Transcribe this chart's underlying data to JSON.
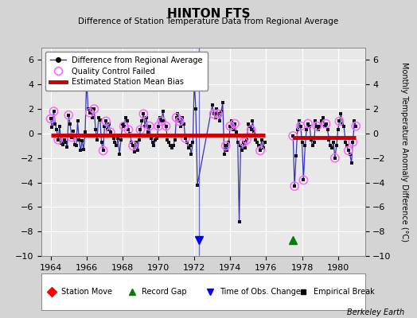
{
  "title": "HINTON FTS",
  "subtitle": "Difference of Station Temperature Data from Regional Average",
  "ylabel": "Monthly Temperature Anomaly Difference (°C)",
  "credit": "Berkeley Earth",
  "xlim": [
    1963.5,
    1981.5
  ],
  "ylim": [
    -10,
    7
  ],
  "yticks": [
    -10,
    -8,
    -6,
    -4,
    -2,
    0,
    2,
    4,
    6
  ],
  "xticks": [
    1964,
    1966,
    1968,
    1970,
    1972,
    1974,
    1976,
    1978,
    1980
  ],
  "bg_color": "#d4d4d4",
  "plot_bg_color": "#e8e8e8",
  "segment1_bias": -0.15,
  "segment2_bias": -0.35,
  "time_obs_change_x": 1972.25,
  "record_gap_x": 1977.5,
  "line_color": "#3333bb",
  "marker_color": "#111111",
  "qc_color": "#ff66ff",
  "bias_color": "#cc0000",
  "seg1_x": [
    1964.0,
    1964.08,
    1964.17,
    1964.25,
    1964.33,
    1964.42,
    1964.5,
    1964.58,
    1964.67,
    1964.75,
    1964.83,
    1964.92,
    1965.0,
    1965.08,
    1965.17,
    1965.25,
    1965.33,
    1965.42,
    1965.5,
    1965.58,
    1965.67,
    1965.75,
    1965.83,
    1965.92,
    1966.0,
    1966.08,
    1966.17,
    1966.25,
    1966.33,
    1966.42,
    1966.5,
    1966.58,
    1966.67,
    1966.75,
    1966.83,
    1966.92,
    1967.0,
    1967.08,
    1967.17,
    1967.25,
    1967.33,
    1967.42,
    1967.5,
    1967.58,
    1967.67,
    1967.75,
    1967.83,
    1967.92,
    1968.0,
    1968.08,
    1968.17,
    1968.25,
    1968.33,
    1968.42,
    1968.5,
    1968.58,
    1968.67,
    1968.75,
    1968.83,
    1968.92,
    1969.0,
    1969.08,
    1969.17,
    1969.25,
    1969.33,
    1969.42,
    1969.5,
    1969.58,
    1969.67,
    1969.75,
    1969.83,
    1969.92,
    1970.0,
    1970.08,
    1970.17,
    1970.25,
    1970.33,
    1970.42,
    1970.5,
    1970.58,
    1970.67,
    1970.75,
    1970.83,
    1970.92,
    1971.0,
    1971.08,
    1971.17,
    1971.25,
    1971.33,
    1971.42,
    1971.5,
    1971.58,
    1971.67,
    1971.75,
    1971.83,
    1971.92,
    1972.0,
    1972.08,
    1972.17,
    1973.0,
    1973.08,
    1973.17,
    1973.25,
    1973.33,
    1973.42,
    1973.5,
    1973.58,
    1973.67,
    1973.75,
    1973.83,
    1973.92,
    1974.0,
    1974.08,
    1974.17,
    1974.25,
    1974.33,
    1974.42,
    1974.5,
    1974.58,
    1974.67,
    1974.75,
    1974.83,
    1974.92,
    1975.0,
    1975.08,
    1975.17,
    1975.25,
    1975.33,
    1975.42,
    1975.5,
    1975.58,
    1975.67,
    1975.75,
    1975.83,
    1975.92
  ],
  "seg1_y": [
    1.2,
    0.5,
    1.8,
    0.8,
    0.3,
    -0.5,
    0.6,
    -0.8,
    -0.9,
    -0.5,
    -0.7,
    -1.1,
    1.5,
    0.8,
    -0.3,
    0.2,
    -0.9,
    -1.0,
    1.0,
    -0.5,
    -1.4,
    -0.6,
    -1.3,
    0.1,
    4.5,
    2.0,
    1.7,
    2.0,
    1.3,
    2.0,
    0.3,
    -0.5,
    1.3,
    1.1,
    -0.7,
    -1.4,
    0.6,
    1.0,
    0.3,
    0.8,
    0.1,
    -0.2,
    -0.4,
    -0.7,
    -1.0,
    -0.4,
    -1.7,
    -0.5,
    0.8,
    0.6,
    1.3,
    1.0,
    0.3,
    0.0,
    -0.7,
    -1.0,
    -1.5,
    -0.7,
    -1.4,
    -0.5,
    0.3,
    1.0,
    1.6,
    0.6,
    1.3,
    0.1,
    0.6,
    -0.4,
    -0.7,
    -1.0,
    -0.5,
    -0.4,
    0.6,
    1.3,
    1.0,
    1.8,
    1.0,
    0.6,
    -0.5,
    -0.7,
    -1.0,
    -1.2,
    -1.0,
    -0.5,
    1.3,
    1.6,
    1.0,
    0.6,
    1.3,
    0.8,
    -0.4,
    -0.7,
    -1.2,
    -1.0,
    -1.7,
    -0.7,
    4.3,
    2.0,
    -4.2,
    2.3,
    1.6,
    1.3,
    2.0,
    1.6,
    1.0,
    1.8,
    2.5,
    -1.7,
    -1.0,
    -1.4,
    -0.7,
    0.6,
    1.0,
    0.3,
    0.8,
    0.1,
    -0.7,
    -7.2,
    -1.0,
    -1.4,
    -0.7,
    -1.2,
    -0.5,
    0.8,
    0.6,
    0.3,
    1.0,
    0.1,
    -0.5,
    -0.7,
    -1.0,
    -1.4,
    -0.5,
    -1.2,
    -0.7
  ],
  "seg1_qc": [
    0,
    2,
    5,
    12,
    14,
    24,
    26,
    29,
    35,
    37,
    40,
    49,
    52,
    55,
    60,
    62,
    66,
    72,
    74,
    77,
    84,
    86,
    90,
    100,
    103,
    108,
    111,
    114,
    120,
    122,
    125,
    131
  ],
  "seg2_x": [
    1977.5,
    1977.58,
    1977.67,
    1977.75,
    1977.83,
    1977.92,
    1978.0,
    1978.08,
    1978.17,
    1978.25,
    1978.33,
    1978.42,
    1978.5,
    1978.58,
    1978.67,
    1978.75,
    1978.83,
    1978.92,
    1979.0,
    1979.08,
    1979.17,
    1979.25,
    1979.33,
    1979.42,
    1979.5,
    1979.58,
    1979.67,
    1979.75,
    1979.83,
    1979.92,
    1980.0,
    1980.08,
    1980.17,
    1980.25,
    1980.33,
    1980.42,
    1980.5,
    1980.58,
    1980.67,
    1980.75,
    1980.83,
    1980.92,
    1981.0
  ],
  "seg2_y": [
    -0.2,
    -4.3,
    -1.8,
    0.3,
    1.0,
    0.6,
    -0.7,
    -3.8,
    -1.0,
    0.3,
    0.8,
    0.6,
    -0.5,
    -1.0,
    -0.7,
    1.0,
    0.6,
    0.3,
    0.6,
    1.0,
    1.3,
    0.6,
    0.8,
    0.3,
    -0.5,
    -1.0,
    -1.2,
    -0.7,
    -2.0,
    -1.0,
    0.3,
    1.0,
    1.6,
    0.8,
    0.6,
    -0.7,
    -1.0,
    -1.4,
    -1.7,
    -2.4,
    -0.7,
    1.0,
    0.6
  ],
  "seg2_qc": [
    0,
    1,
    5,
    7,
    10,
    16,
    22,
    28,
    31,
    37,
    40,
    42
  ]
}
